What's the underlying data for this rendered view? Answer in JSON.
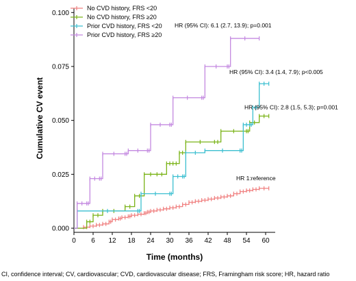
{
  "chart_data": {
    "type": "line",
    "step": true,
    "xlabel": "Time (months)",
    "ylabel": "Cumulative CV event",
    "xlim": [
      0,
      63
    ],
    "ylim": [
      0,
      0.102
    ],
    "xticks": [
      0,
      6,
      12,
      18,
      24,
      30,
      36,
      42,
      48,
      54,
      60
    ],
    "yticks": [
      "0.000",
      "0.025",
      "0.050",
      "0.075",
      "0.100"
    ],
    "legend_position": "top-left",
    "series": [
      {
        "name": "No CVD history, FRS <20",
        "color": "#f08080",
        "points": [
          [
            0,
            0
          ],
          [
            3,
            0.0005
          ],
          [
            5,
            0.001
          ],
          [
            7,
            0.0015
          ],
          [
            9,
            0.002
          ],
          [
            11,
            0.003
          ],
          [
            12,
            0.004
          ],
          [
            14,
            0.0045
          ],
          [
            15,
            0.005
          ],
          [
            17,
            0.0055
          ],
          [
            18,
            0.006
          ],
          [
            20,
            0.0065
          ],
          [
            22,
            0.007
          ],
          [
            23,
            0.0075
          ],
          [
            24,
            0.008
          ],
          [
            26,
            0.0085
          ],
          [
            28,
            0.009
          ],
          [
            30,
            0.0095
          ],
          [
            32,
            0.01
          ],
          [
            34,
            0.011
          ],
          [
            36,
            0.012
          ],
          [
            38,
            0.0125
          ],
          [
            40,
            0.013
          ],
          [
            42,
            0.0135
          ],
          [
            44,
            0.014
          ],
          [
            46,
            0.0145
          ],
          [
            48,
            0.015
          ],
          [
            50,
            0.016
          ],
          [
            52,
            0.017
          ],
          [
            54,
            0.0175
          ],
          [
            56,
            0.018
          ],
          [
            58,
            0.0185
          ],
          [
            61,
            0.0185
          ]
        ]
      },
      {
        "name": "No CVD history, FRS ≥20",
        "color": "#7ab317",
        "points": [
          [
            0,
            0
          ],
          [
            4,
            0.003
          ],
          [
            6,
            0.006
          ],
          [
            9,
            0.008
          ],
          [
            16,
            0.01
          ],
          [
            19,
            0.015
          ],
          [
            22,
            0.025
          ],
          [
            26,
            0.025
          ],
          [
            29,
            0.03
          ],
          [
            31,
            0.03
          ],
          [
            33,
            0.035
          ],
          [
            35,
            0.04
          ],
          [
            44,
            0.04
          ],
          [
            46,
            0.045
          ],
          [
            54,
            0.045
          ],
          [
            55,
            0.049
          ],
          [
            58,
            0.052
          ],
          [
            61,
            0.052
          ]
        ]
      },
      {
        "name": "Prior CVD history, FRS <20",
        "color": "#3bbfd0",
        "points": [
          [
            0,
            0
          ],
          [
            1,
            0.008
          ],
          [
            20,
            0.008
          ],
          [
            21,
            0.016
          ],
          [
            30,
            0.016
          ],
          [
            31,
            0.024
          ],
          [
            34,
            0.024
          ],
          [
            35,
            0.035
          ],
          [
            41,
            0.036
          ],
          [
            52,
            0.036
          ],
          [
            53,
            0.048
          ],
          [
            55,
            0.048
          ],
          [
            56,
            0.056
          ],
          [
            58,
            0.067
          ],
          [
            61,
            0.067
          ]
        ]
      },
      {
        "name": "Prior CVD history, FRS ≥20",
        "color": "#c388e0",
        "points": [
          [
            0,
            0
          ],
          [
            1,
            0.0115
          ],
          [
            4,
            0.0115
          ],
          [
            5,
            0.023
          ],
          [
            8,
            0.023
          ],
          [
            9,
            0.0345
          ],
          [
            16,
            0.0345
          ],
          [
            17,
            0.036
          ],
          [
            23,
            0.036
          ],
          [
            24,
            0.048
          ],
          [
            30,
            0.048
          ],
          [
            31,
            0.0605
          ],
          [
            40,
            0.0605
          ],
          [
            41,
            0.075
          ],
          [
            48,
            0.075
          ],
          [
            49,
            0.088
          ],
          [
            58,
            0.088
          ]
        ]
      }
    ],
    "annotations": [
      {
        "text": "HR (95% CI): 6.1 (2.7, 13.9); p=0.001",
        "series": 3
      },
      {
        "text": "HR (95% CI): 3.4 (1.4, 7.9); p<0.005",
        "series": 2
      },
      {
        "text": "HR (95% CI): 2.8 (1.5, 5.3); p=0.001",
        "series": 1
      },
      {
        "text": "HR 1:reference",
        "series": 0
      }
    ],
    "footnote": "CI, confidence interval; CV, cardiovascular; CVD, cardiovascular disease; FRS, Framingham risk score; HR, hazard ratio"
  }
}
